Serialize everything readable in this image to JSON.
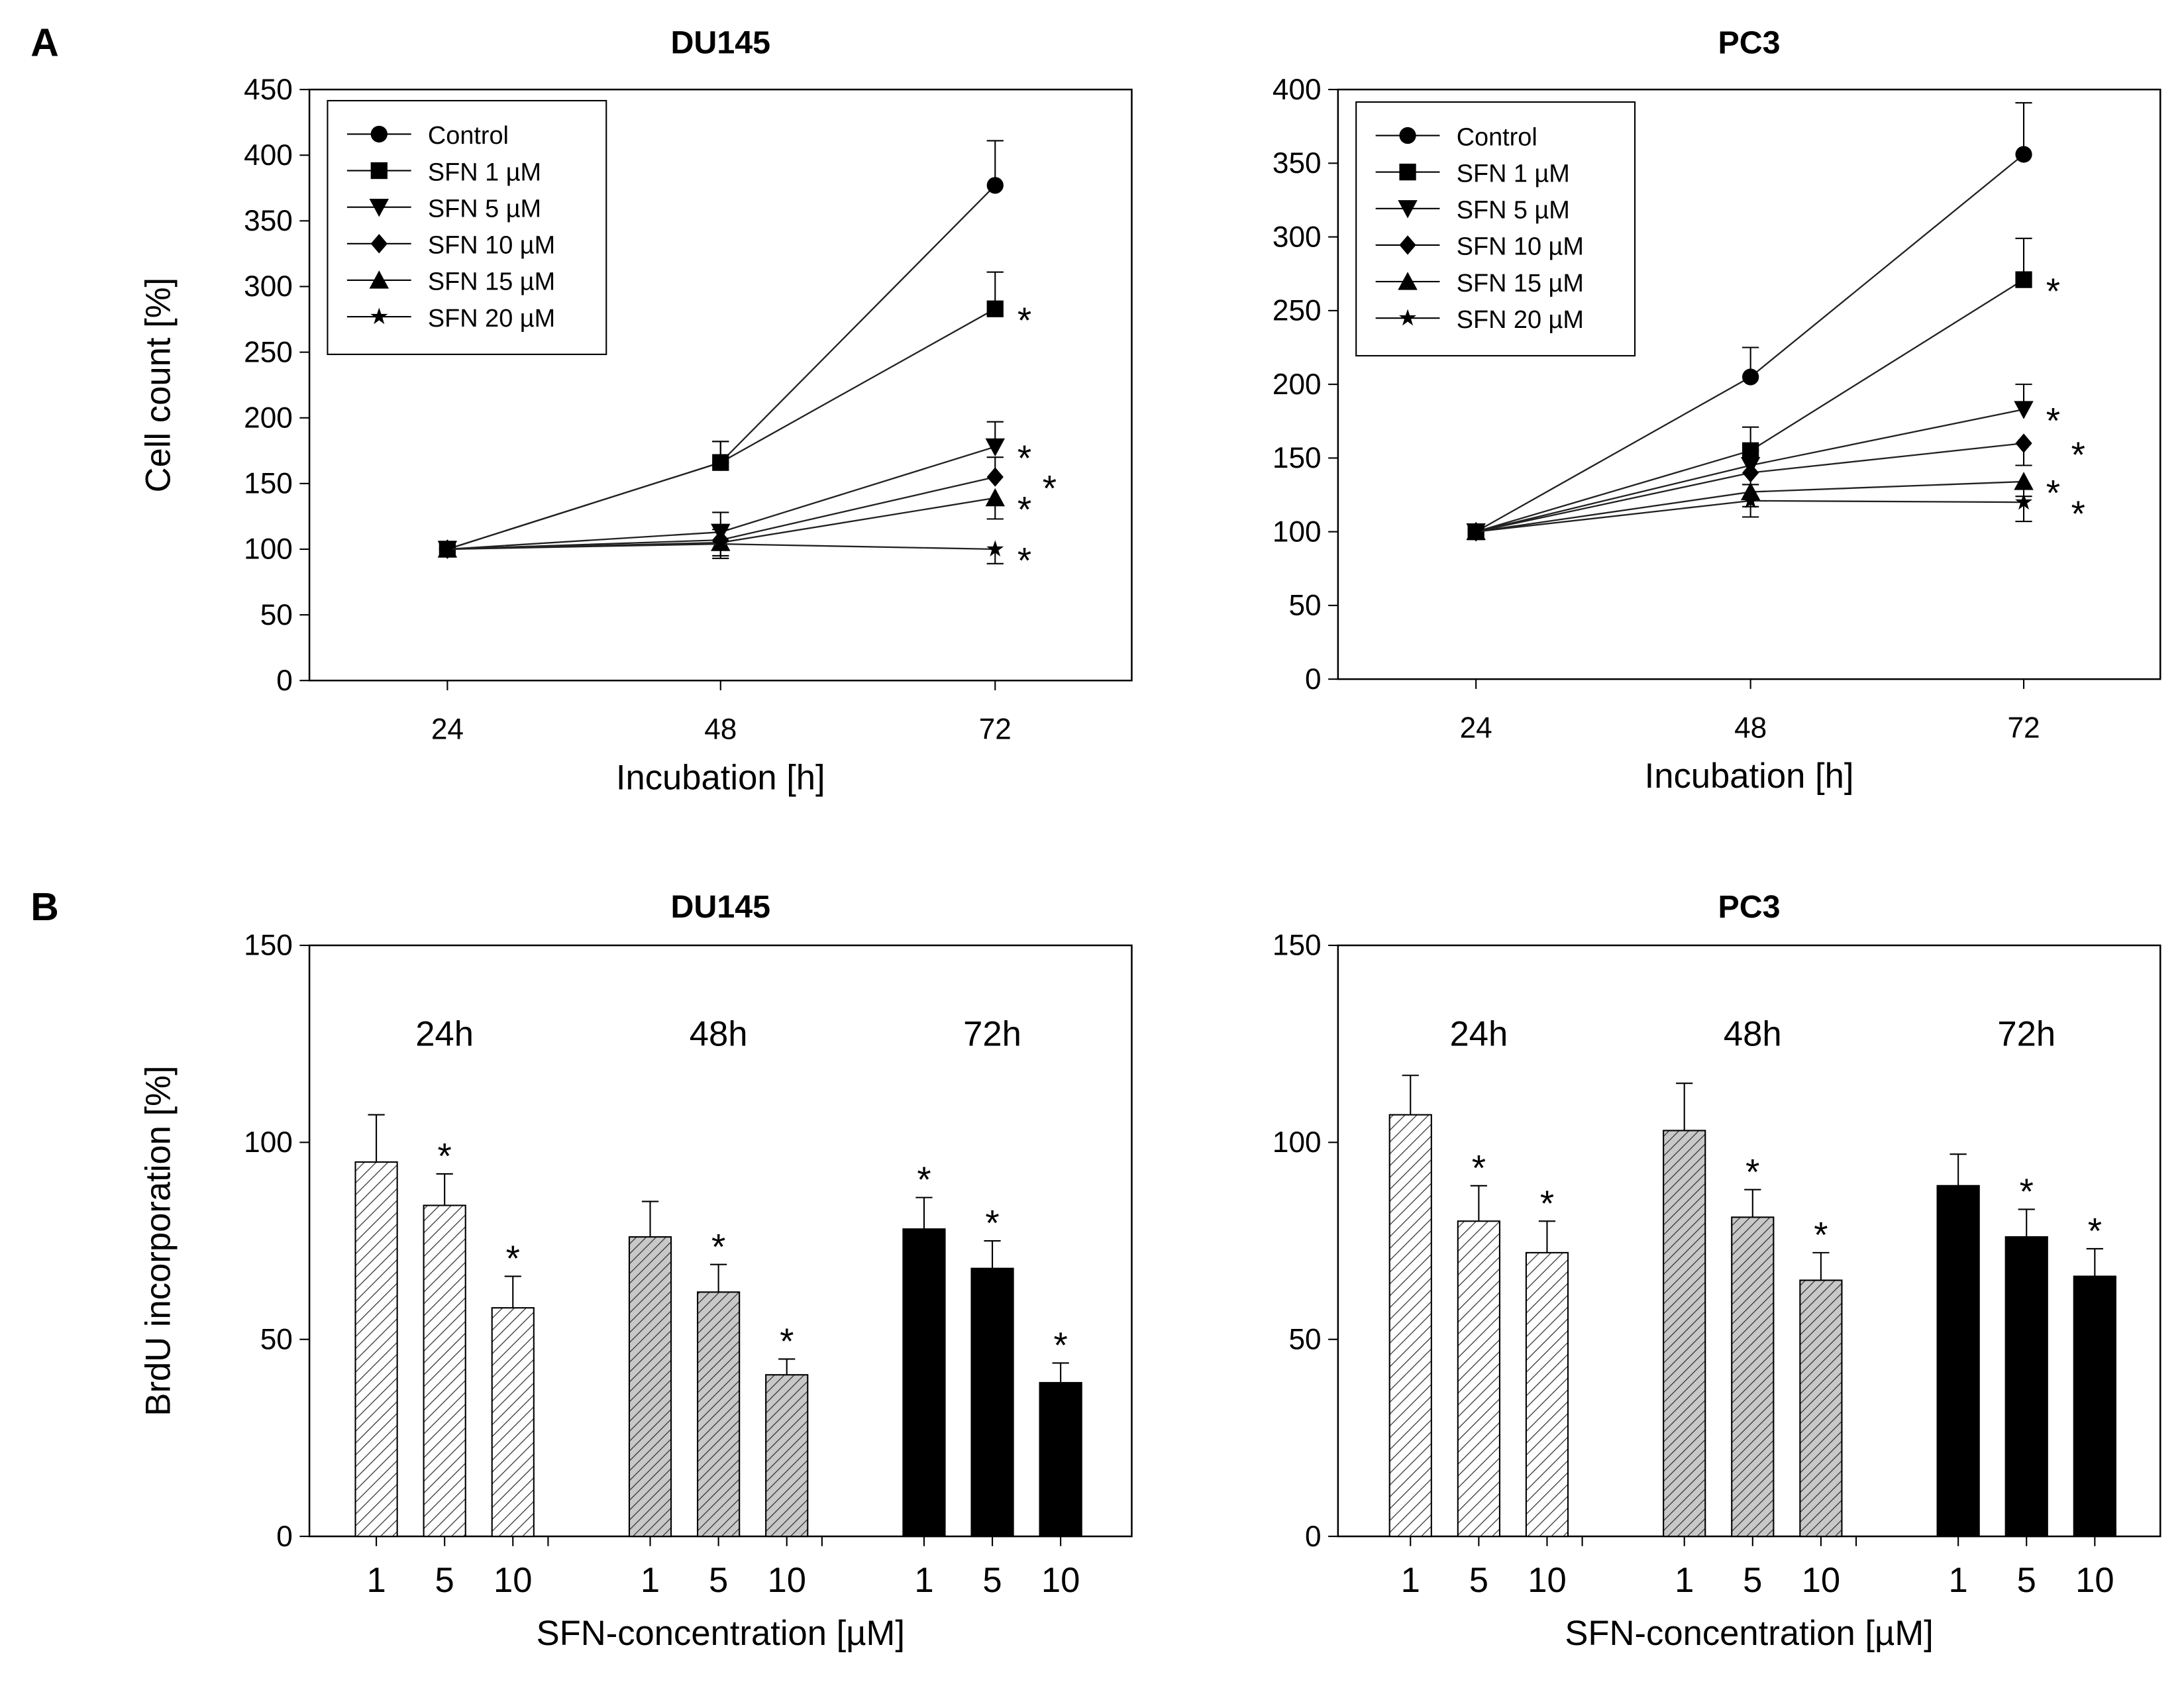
{
  "chart_data": [
    {
      "panel": "A",
      "type": "line",
      "title": "DU145",
      "xlabel": "Incubation [h]",
      "ylabel": "Cell count [%]",
      "x": [
        24,
        48,
        72
      ],
      "ylim": [
        0,
        450
      ],
      "yticks": [
        0,
        50,
        100,
        150,
        200,
        250,
        300,
        350,
        400,
        450
      ],
      "legend_position": "top-left",
      "series": [
        {
          "name": "Control",
          "marker": "circle",
          "values": [
            100,
            166,
            377
          ],
          "errors": [
            0,
            16,
            34
          ],
          "significant": [
            false,
            false,
            false
          ]
        },
        {
          "name": "SFN 1 µM",
          "marker": "square",
          "values": [
            100,
            166,
            283
          ],
          "errors": [
            0,
            16,
            28
          ],
          "significant": [
            false,
            false,
            true
          ]
        },
        {
          "name": "SFN 5 µM",
          "marker": "triangle-down",
          "values": [
            100,
            113,
            178
          ],
          "errors": [
            0,
            15,
            19
          ],
          "significant": [
            false,
            false,
            true
          ]
        },
        {
          "name": "SFN 10 µM",
          "marker": "diamond",
          "values": [
            100,
            107,
            155
          ],
          "errors": [
            0,
            8,
            15
          ],
          "significant": [
            false,
            false,
            true
          ]
        },
        {
          "name": "SFN 15 µM",
          "marker": "triangle-up",
          "values": [
            100,
            105,
            139
          ],
          "errors": [
            0,
            10,
            16
          ],
          "significant": [
            false,
            false,
            true
          ]
        },
        {
          "name": "SFN 20 µM",
          "marker": "star",
          "values": [
            100,
            104,
            100
          ],
          "errors": [
            0,
            11,
            11
          ],
          "significant": [
            false,
            false,
            true
          ]
        }
      ]
    },
    {
      "panel": "",
      "type": "line",
      "title": "PC3",
      "xlabel": "Incubation [h]",
      "ylabel": "",
      "x": [
        24,
        48,
        72
      ],
      "ylim": [
        0,
        400
      ],
      "yticks": [
        0,
        50,
        100,
        150,
        200,
        250,
        300,
        350,
        400
      ],
      "legend_position": "top-left",
      "series": [
        {
          "name": "Control",
          "marker": "circle",
          "values": [
            100,
            205,
            356
          ],
          "errors": [
            0,
            20,
            35
          ],
          "significant": [
            false,
            false,
            false
          ]
        },
        {
          "name": "SFN 1 µM",
          "marker": "square",
          "values": [
            100,
            155,
            271
          ],
          "errors": [
            0,
            16,
            28
          ],
          "significant": [
            false,
            false,
            true
          ]
        },
        {
          "name": "SFN 5 µM",
          "marker": "triangle-down",
          "values": [
            100,
            145,
            183
          ],
          "errors": [
            0,
            10,
            17
          ],
          "significant": [
            false,
            false,
            true
          ]
        },
        {
          "name": "SFN 10 µM",
          "marker": "diamond",
          "values": [
            100,
            140,
            160
          ],
          "errors": [
            0,
            8,
            15
          ],
          "significant": [
            false,
            false,
            true
          ]
        },
        {
          "name": "SFN 15 µM",
          "marker": "triangle-up",
          "values": [
            100,
            127,
            134
          ],
          "errors": [
            0,
            10,
            10
          ],
          "significant": [
            false,
            false,
            true
          ]
        },
        {
          "name": "SFN 20 µM",
          "marker": "star",
          "values": [
            100,
            121,
            120
          ],
          "errors": [
            0,
            11,
            13
          ],
          "significant": [
            false,
            false,
            true
          ]
        }
      ]
    },
    {
      "panel": "B",
      "type": "bar",
      "title": "DU145",
      "xlabel": "SFN-concentration [µM]",
      "ylabel": "BrdU incorporation [%]",
      "ylim": [
        0,
        150
      ],
      "yticks": [
        0,
        50,
        100,
        150
      ],
      "groups": [
        {
          "label": "24h",
          "fill": "hatch-light",
          "categories": [
            "1",
            "5",
            "10"
          ],
          "values": [
            95,
            84,
            58
          ],
          "errors": [
            12,
            8,
            8
          ],
          "significant": [
            false,
            true,
            true
          ]
        },
        {
          "label": "48h",
          "fill": "hatch-gray",
          "categories": [
            "1",
            "5",
            "10"
          ],
          "values": [
            76,
            62,
            41
          ],
          "errors": [
            9,
            7,
            4
          ],
          "significant": [
            false,
            true,
            true
          ]
        },
        {
          "label": "72h",
          "fill": "black",
          "categories": [
            "1",
            "5",
            "10"
          ],
          "values": [
            78,
            68,
            39
          ],
          "errors": [
            8,
            7,
            5
          ],
          "significant": [
            true,
            true,
            true
          ]
        }
      ]
    },
    {
      "panel": "",
      "type": "bar",
      "title": "PC3",
      "xlabel": "SFN-concentration [µM]",
      "ylabel": "",
      "ylim": [
        0,
        150
      ],
      "yticks": [
        0,
        50,
        100,
        150
      ],
      "groups": [
        {
          "label": "24h",
          "fill": "hatch-light",
          "categories": [
            "1",
            "5",
            "10"
          ],
          "values": [
            107,
            80,
            72
          ],
          "errors": [
            10,
            9,
            8
          ],
          "significant": [
            false,
            true,
            true
          ]
        },
        {
          "label": "48h",
          "fill": "hatch-gray",
          "categories": [
            "1",
            "5",
            "10"
          ],
          "values": [
            103,
            81,
            65
          ],
          "errors": [
            12,
            7,
            7
          ],
          "significant": [
            false,
            true,
            true
          ]
        },
        {
          "label": "72h",
          "fill": "black",
          "categories": [
            "1",
            "5",
            "10"
          ],
          "values": [
            89,
            76,
            66
          ],
          "errors": [
            8,
            7,
            7
          ],
          "significant": [
            false,
            true,
            true
          ]
        }
      ]
    }
  ],
  "significance_marker": "*"
}
